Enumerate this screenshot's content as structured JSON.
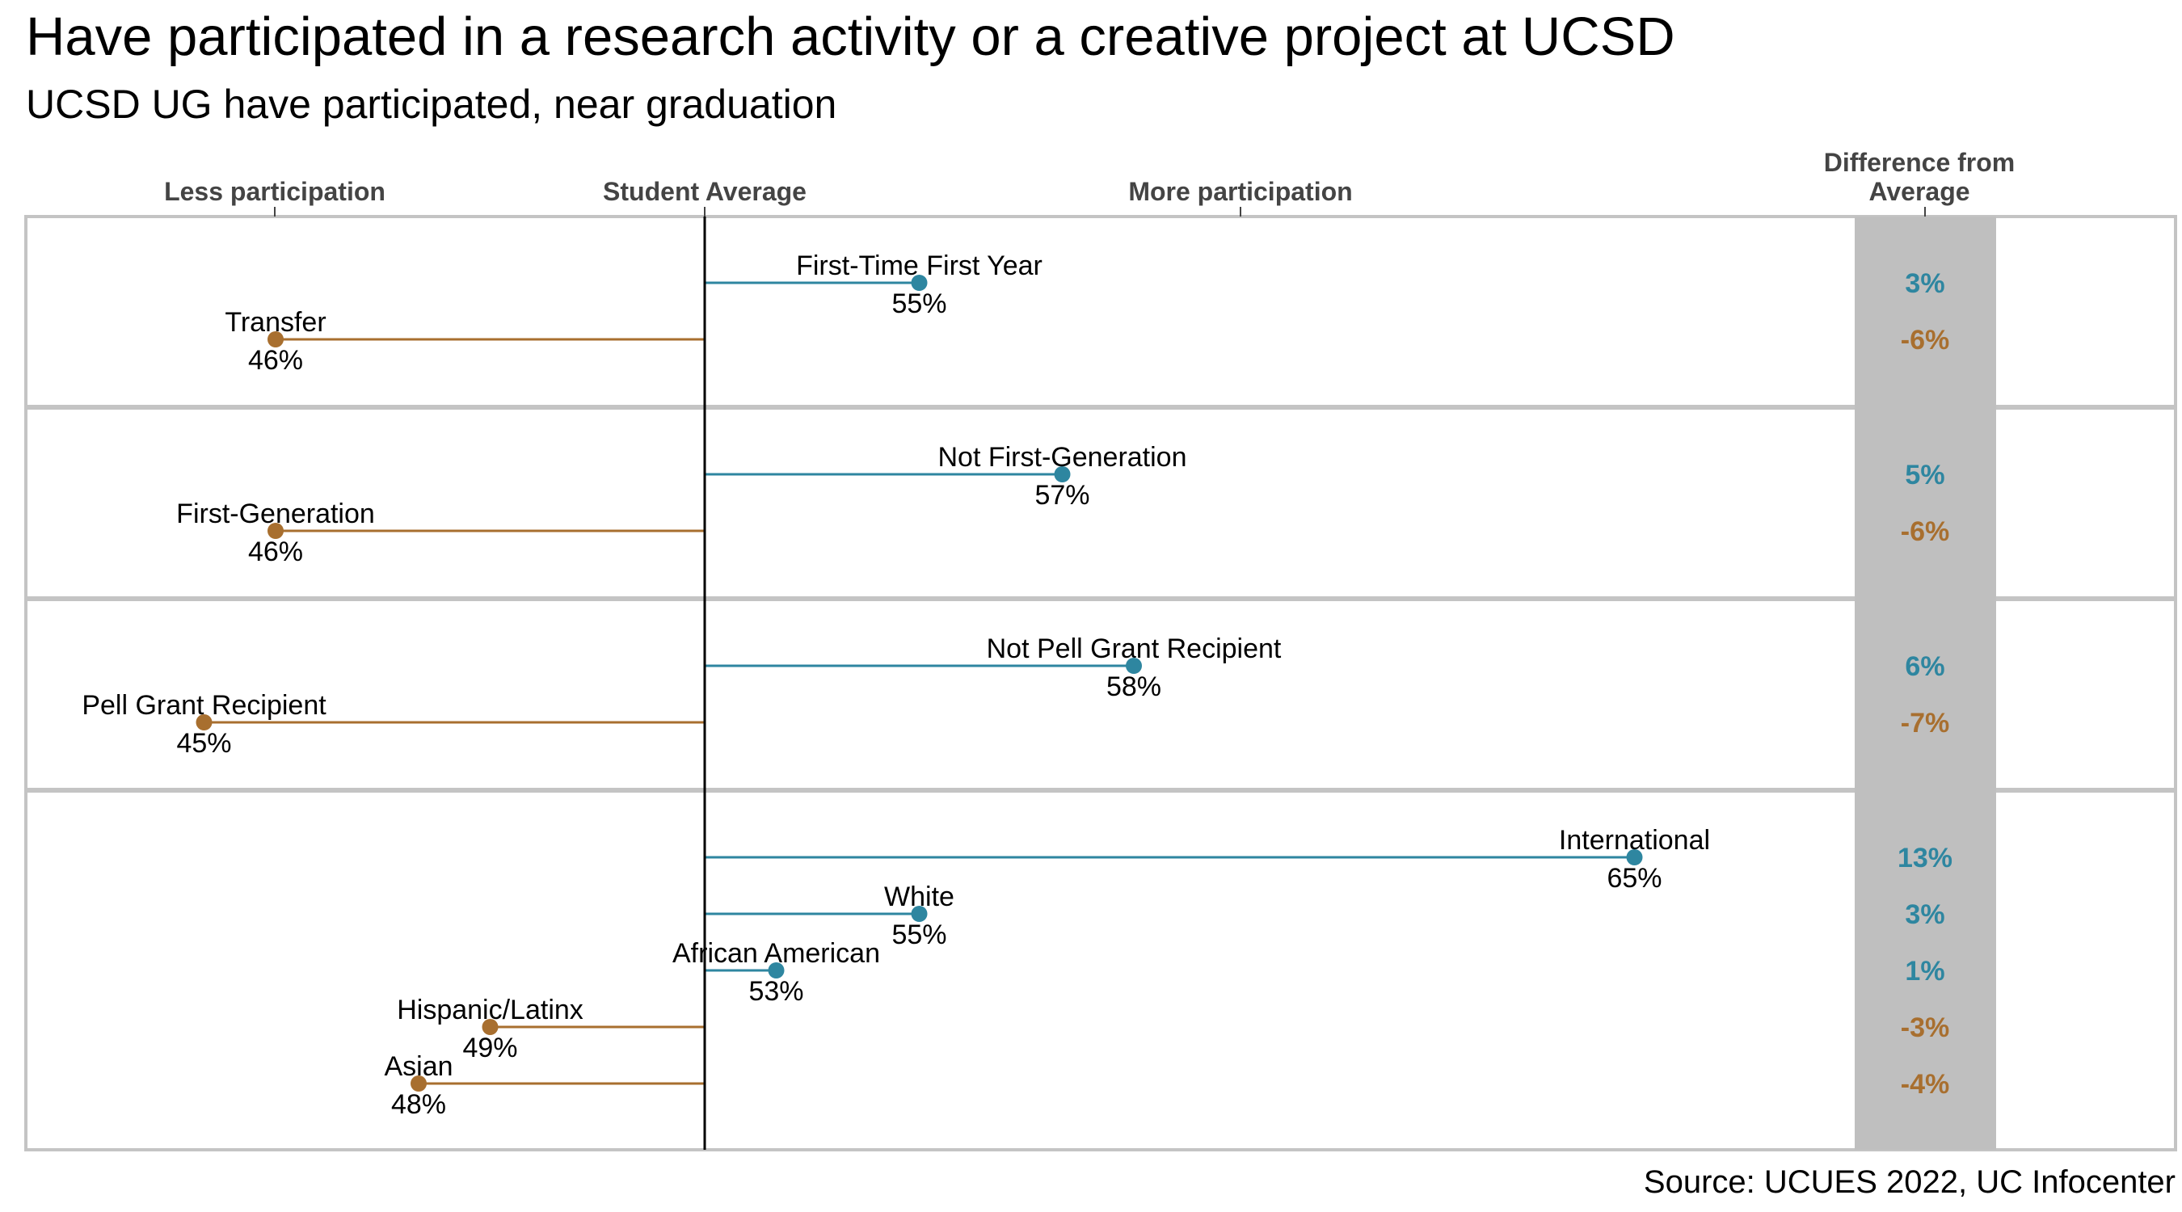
{
  "chart_data": {
    "type": "lollipop",
    "title": "Have participated in a research activity or a creative project at UCSD",
    "subtitle": "UCSD UG have participated, near graduation",
    "axis_labels": {
      "less": "Less participation",
      "average": "Student Average",
      "more": "More participation"
    },
    "diff_header": [
      "Difference from",
      "Average"
    ],
    "source": "Source: UCUES 2022, UC Infocenter",
    "average": 52,
    "xlim": [
      40,
      71
    ],
    "colors": {
      "above": "#2e86a0",
      "below": "#a86f2f"
    },
    "groups": [
      {
        "items": [
          {
            "label": "First-Time First Year",
            "value": 55,
            "value_label": "55%",
            "diff": "3%"
          },
          {
            "label": "Transfer",
            "value": 46,
            "value_label": "46%",
            "diff": "-6%"
          }
        ]
      },
      {
        "items": [
          {
            "label": "Not First-Generation",
            "value": 57,
            "value_label": "57%",
            "diff": "5%"
          },
          {
            "label": "First-Generation",
            "value": 46,
            "value_label": "46%",
            "diff": "-6%"
          }
        ]
      },
      {
        "items": [
          {
            "label": "Not Pell Grant Recipient",
            "value": 58,
            "value_label": "58%",
            "diff": "6%"
          },
          {
            "label": "Pell Grant Recipient",
            "value": 45,
            "value_label": "45%",
            "diff": "-7%"
          }
        ]
      },
      {
        "items": [
          {
            "label": "International",
            "value": 65,
            "value_label": "65%",
            "diff": "13%"
          },
          {
            "label": "White",
            "value": 55,
            "value_label": "55%",
            "diff": "3%"
          },
          {
            "label": "African American",
            "value": 53,
            "value_label": "53%",
            "diff": "1%"
          },
          {
            "label": "Hispanic/Latinx",
            "value": 49,
            "value_label": "49%",
            "diff": "-3%"
          },
          {
            "label": "Asian",
            "value": 48,
            "value_label": "48%",
            "diff": "-4%"
          }
        ]
      }
    ]
  }
}
